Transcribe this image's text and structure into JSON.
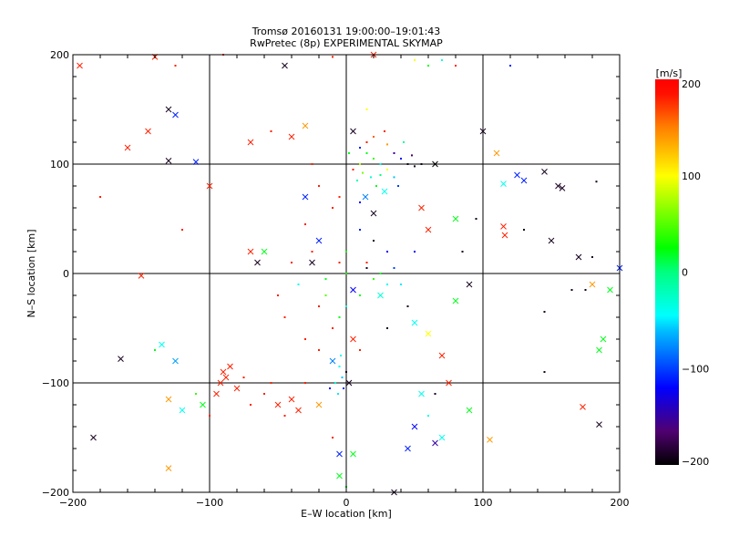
{
  "chart_data": {
    "type": "scatter",
    "title": "Tromsø 20160131 19:00:00–19:01:43",
    "subtitle": "RwPretec (8p) EXPERIMENTAL SKYMAP",
    "xlabel": "E–W location [km]",
    "ylabel": "N–S location [km]",
    "xlim": [
      -200,
      200
    ],
    "ylim": [
      -200,
      200
    ],
    "xticks": [
      -200,
      -100,
      0,
      100,
      200
    ],
    "yticks": [
      -200,
      -100,
      0,
      100,
      200
    ],
    "xtick_labels": [
      "−200",
      "−100",
      "0",
      "100",
      "200"
    ],
    "ytick_labels": [
      "−200",
      "−100",
      "0",
      "100",
      "200"
    ],
    "grid": true,
    "colorbar": {
      "title": "[m/s]",
      "range": [
        -200,
        200
      ],
      "ticks": [
        200,
        100,
        0,
        -100,
        -200
      ],
      "tick_labels": [
        "200",
        "100",
        "0",
        "−100",
        "−200"
      ],
      "stops": [
        [
          -200,
          "#000000"
        ],
        [
          -165,
          "#500070"
        ],
        [
          -120,
          "#0000ff"
        ],
        [
          -60,
          "#00c0ff"
        ],
        [
          -45,
          "#00ffff"
        ],
        [
          0,
          "#00ff80"
        ],
        [
          25,
          "#00ff00"
        ],
        [
          100,
          "#ffff00"
        ],
        [
          150,
          "#ff8000"
        ],
        [
          185,
          "#ff1000"
        ],
        [
          200,
          "#ff0000"
        ]
      ]
    },
    "point_fields": [
      "x_km",
      "y_km",
      "velocity_ms",
      "marker(0=dot,1=cross)"
    ],
    "points": [
      [
        10,
        115,
        -110,
        0
      ],
      [
        15,
        110,
        20,
        0
      ],
      [
        20,
        105,
        40,
        0
      ],
      [
        25,
        100,
        -40,
        0
      ],
      [
        5,
        95,
        180,
        0
      ],
      [
        12,
        92,
        60,
        0
      ],
      [
        18,
        88,
        -30,
        0
      ],
      [
        30,
        95,
        100,
        0
      ],
      [
        22,
        80,
        20,
        0
      ],
      [
        8,
        85,
        -20,
        0
      ],
      [
        28,
        75,
        -40,
        1
      ],
      [
        35,
        110,
        -150,
        0
      ],
      [
        45,
        100,
        -190,
        0
      ],
      [
        40,
        105,
        -120,
        0
      ],
      [
        50,
        98,
        -190,
        0
      ],
      [
        15,
        120,
        180,
        0
      ],
      [
        30,
        118,
        140,
        0
      ],
      [
        5,
        130,
        -190,
        1
      ],
      [
        20,
        125,
        160,
        0
      ],
      [
        10,
        100,
        80,
        0
      ],
      [
        25,
        90,
        0,
        0
      ],
      [
        35,
        88,
        -60,
        0
      ],
      [
        2,
        110,
        20,
        0
      ],
      [
        14,
        70,
        -80,
        1
      ],
      [
        38,
        80,
        -100,
        0
      ],
      [
        48,
        108,
        -170,
        0
      ],
      [
        55,
        100,
        -190,
        0
      ],
      [
        65,
        100,
        -200,
        1
      ],
      [
        42,
        120,
        -10,
        0
      ],
      [
        28,
        130,
        180,
        0
      ],
      [
        10,
        40,
        -110,
        0
      ],
      [
        20,
        30,
        -190,
        0
      ],
      [
        30,
        20,
        -120,
        0
      ],
      [
        15,
        10,
        180,
        0
      ],
      [
        25,
        0,
        20,
        0
      ],
      [
        20,
        -5,
        40,
        0
      ],
      [
        30,
        -10,
        -40,
        0
      ],
      [
        10,
        -20,
        20,
        0
      ],
      [
        0,
        -30,
        -30,
        0
      ],
      [
        -5,
        -40,
        20,
        0
      ],
      [
        -10,
        -50,
        180,
        0
      ],
      [
        -20,
        -30,
        180,
        0
      ],
      [
        -15,
        -20,
        50,
        0
      ],
      [
        5,
        -15,
        -120,
        1
      ],
      [
        15,
        5,
        -190,
        0
      ],
      [
        35,
        5,
        -100,
        0
      ],
      [
        40,
        -10,
        -50,
        0
      ],
      [
        45,
        -30,
        -190,
        0
      ],
      [
        50,
        -45,
        -40,
        1
      ],
      [
        0,
        20,
        30,
        0
      ],
      [
        -5,
        10,
        180,
        0
      ],
      [
        -25,
        20,
        180,
        0
      ],
      [
        -10,
        60,
        180,
        0
      ],
      [
        -20,
        80,
        180,
        0
      ],
      [
        -30,
        45,
        180,
        0
      ],
      [
        -40,
        10,
        180,
        0
      ],
      [
        -50,
        -20,
        180,
        0
      ],
      [
        -45,
        -40,
        180,
        0
      ],
      [
        -30,
        -60,
        180,
        0
      ],
      [
        -20,
        -70,
        180,
        0
      ],
      [
        5,
        -60,
        180,
        1
      ],
      [
        10,
        -70,
        180,
        0
      ],
      [
        -35,
        -10,
        -40,
        0
      ],
      [
        -15,
        -5,
        20,
        0
      ],
      [
        0,
        0,
        30,
        0
      ],
      [
        25,
        -20,
        -30,
        1
      ],
      [
        20,
        55,
        -190,
        1
      ],
      [
        10,
        65,
        -120,
        0
      ],
      [
        30,
        -50,
        -190,
        0
      ],
      [
        -5,
        70,
        180,
        0
      ],
      [
        -5,
        -85,
        -40,
        0
      ],
      [
        -3,
        -95,
        -60,
        0
      ],
      [
        -8,
        -100,
        -30,
        0
      ],
      [
        -2,
        -105,
        -110,
        0
      ],
      [
        0,
        -90,
        -190,
        0
      ],
      [
        -6,
        -110,
        -50,
        0
      ],
      [
        -10,
        -80,
        -80,
        1
      ],
      [
        -4,
        -75,
        -40,
        0
      ],
      [
        2,
        -100,
        -190,
        1
      ],
      [
        -12,
        -105,
        -120,
        0
      ],
      [
        -90,
        -90,
        180,
        1
      ],
      [
        -88,
        -95,
        180,
        1
      ],
      [
        -92,
        -100,
        180,
        1
      ],
      [
        -85,
        -85,
        180,
        1
      ],
      [
        -95,
        -110,
        180,
        1
      ],
      [
        -80,
        -105,
        180,
        1
      ],
      [
        -60,
        -110,
        180,
        0
      ],
      [
        -50,
        -120,
        180,
        1
      ],
      [
        -40,
        -115,
        180,
        1
      ],
      [
        -35,
        -125,
        180,
        1
      ],
      [
        -45,
        -130,
        180,
        0
      ],
      [
        -55,
        -100,
        180,
        0
      ],
      [
        -70,
        -120,
        180,
        0
      ],
      [
        -30,
        -100,
        180,
        0
      ],
      [
        -20,
        -120,
        140,
        1
      ],
      [
        -75,
        -95,
        180,
        0
      ],
      [
        -100,
        -130,
        180,
        0
      ],
      [
        -110,
        -110,
        40,
        0
      ],
      [
        -120,
        -125,
        -40,
        1
      ],
      [
        -130,
        -115,
        140,
        1
      ],
      [
        -125,
        -80,
        -70,
        1
      ],
      [
        -140,
        -70,
        20,
        0
      ],
      [
        -135,
        -65,
        -40,
        1
      ],
      [
        -105,
        -120,
        20,
        1
      ],
      [
        -195,
        190,
        180,
        1
      ],
      [
        -140,
        198,
        180,
        1
      ],
      [
        -125,
        190,
        180,
        0
      ],
      [
        -130,
        150,
        -190,
        1
      ],
      [
        -125,
        145,
        -110,
        1
      ],
      [
        -130,
        103,
        -190,
        1
      ],
      [
        -110,
        102,
        -110,
        1
      ],
      [
        -160,
        115,
        180,
        1
      ],
      [
        -145,
        130,
        180,
        1
      ],
      [
        -100,
        80,
        180,
        1
      ],
      [
        -120,
        40,
        180,
        0
      ],
      [
        -180,
        70,
        180,
        0
      ],
      [
        -150,
        -2,
        180,
        1
      ],
      [
        -185,
        -150,
        -190,
        1
      ],
      [
        -165,
        -78,
        -190,
        1
      ],
      [
        -130,
        -178,
        140,
        1
      ],
      [
        -90,
        200,
        180,
        0
      ],
      [
        -30,
        135,
        140,
        1
      ],
      [
        -40,
        125,
        180,
        1
      ],
      [
        -55,
        130,
        180,
        0
      ],
      [
        -70,
        120,
        180,
        1
      ],
      [
        -45,
        190,
        -190,
        1
      ],
      [
        -10,
        198,
        180,
        0
      ],
      [
        20,
        200,
        180,
        1
      ],
      [
        50,
        195,
        100,
        0
      ],
      [
        60,
        190,
        20,
        0
      ],
      [
        80,
        190,
        180,
        0
      ],
      [
        70,
        195,
        -40,
        0
      ],
      [
        120,
        190,
        -110,
        0
      ],
      [
        100,
        130,
        -190,
        1
      ],
      [
        110,
        110,
        140,
        1
      ],
      [
        115,
        82,
        -40,
        1
      ],
      [
        125,
        90,
        -110,
        1
      ],
      [
        130,
        85,
        -110,
        1
      ],
      [
        145,
        93,
        -190,
        1
      ],
      [
        155,
        80,
        -190,
        1
      ],
      [
        158,
        78,
        -190,
        1
      ],
      [
        183,
        84,
        -190,
        0
      ],
      [
        115,
        43,
        180,
        1
      ],
      [
        116,
        35,
        180,
        1
      ],
      [
        130,
        40,
        -190,
        0
      ],
      [
        150,
        30,
        -190,
        1
      ],
      [
        170,
        15,
        -190,
        1
      ],
      [
        180,
        15,
        -190,
        0
      ],
      [
        200,
        5,
        -110,
        1
      ],
      [
        180,
        -10,
        140,
        1
      ],
      [
        193,
        -15,
        20,
        1
      ],
      [
        165,
        -15,
        -190,
        0
      ],
      [
        145,
        -35,
        -190,
        0
      ],
      [
        185,
        -70,
        20,
        1
      ],
      [
        188,
        -60,
        20,
        1
      ],
      [
        145,
        -90,
        -190,
        0
      ],
      [
        175,
        -15,
        -190,
        0
      ],
      [
        65,
        -110,
        -190,
        0
      ],
      [
        60,
        -130,
        -40,
        0
      ],
      [
        70,
        -150,
        -40,
        1
      ],
      [
        50,
        -140,
        -120,
        1
      ],
      [
        45,
        -160,
        -110,
        1
      ],
      [
        65,
        -155,
        -150,
        1
      ],
      [
        90,
        -125,
        20,
        1
      ],
      [
        105,
        -152,
        140,
        1
      ],
      [
        173,
        -122,
        180,
        1
      ],
      [
        185,
        -138,
        -190,
        1
      ],
      [
        75,
        -100,
        180,
        1
      ],
      [
        70,
        -75,
        180,
        1
      ],
      [
        60,
        -55,
        100,
        1
      ],
      [
        55,
        -110,
        -40,
        1
      ],
      [
        35,
        -200,
        -190,
        1
      ],
      [
        0,
        -195,
        20,
        0
      ],
      [
        -5,
        -185,
        20,
        1
      ],
      [
        5,
        -165,
        20,
        1
      ],
      [
        -5,
        -165,
        -110,
        1
      ],
      [
        -10,
        -150,
        180,
        0
      ],
      [
        -65,
        10,
        -190,
        1
      ],
      [
        -70,
        20,
        180,
        1
      ],
      [
        -60,
        20,
        20,
        1
      ],
      [
        -25,
        10,
        -190,
        1
      ],
      [
        -20,
        30,
        -110,
        1
      ],
      [
        85,
        20,
        -190,
        0
      ],
      [
        90,
        -10,
        -190,
        1
      ],
      [
        80,
        -25,
        20,
        1
      ],
      [
        95,
        50,
        -190,
        0
      ],
      [
        80,
        50,
        20,
        1
      ],
      [
        55,
        60,
        180,
        1
      ],
      [
        60,
        40,
        180,
        1
      ],
      [
        50,
        20,
        -120,
        0
      ],
      [
        15,
        150,
        100,
        0
      ],
      [
        -30,
        70,
        -110,
        1
      ],
      [
        -25,
        100,
        180,
        0
      ]
    ]
  }
}
